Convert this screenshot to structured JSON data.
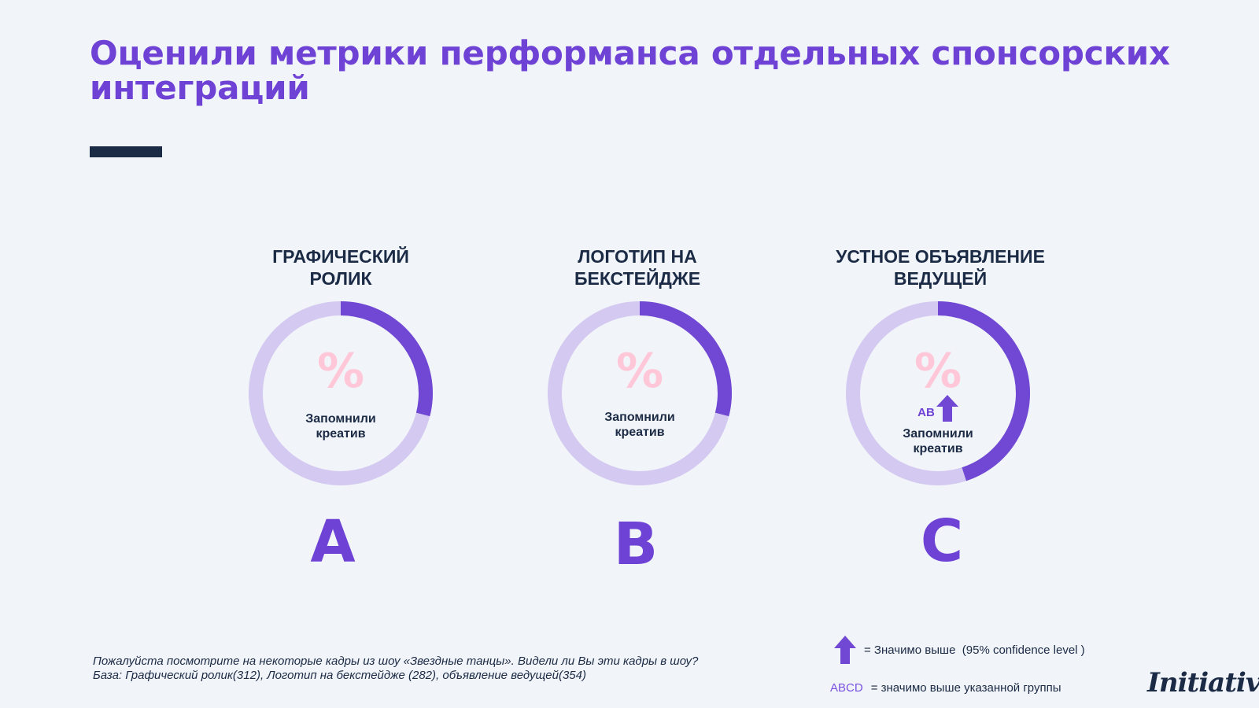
{
  "title": "Оценили метрики перформанса отдельных спонсорских интеграций",
  "colors": {
    "title": "#6f42d6",
    "dark": "#1b2a45",
    "ring_fill": "#7048d4",
    "ring_track": "#d4c9f1",
    "percent": "#ffc7d8",
    "accent": "#7a52e0"
  },
  "chart_data": {
    "type": "pie",
    "series": [
      {
        "heading": "ГРАФИЧЕСКИЙ\nРОЛИК",
        "value_label": "%",
        "caption": "Запомнили\nкреатив",
        "fraction": 0.29,
        "group": "A",
        "significant_over": ""
      },
      {
        "heading": "ЛОГОТИП НА\nБЕКСТЕЙДЖЕ",
        "value_label": "%",
        "caption": "Запомнили\nкреатив",
        "fraction": 0.29,
        "group": "B",
        "significant_over": ""
      },
      {
        "heading": "УСТНОЕ ОБЪЯВЛЕНИЕ\nВЕДУЩЕЙ",
        "value_label": "%",
        "caption": "Запомнили\nкреатив",
        "fraction": 0.45,
        "group": "C",
        "significant_over": "AB",
        "arrow_icon": "up-arrow-icon"
      }
    ]
  },
  "footnote": {
    "question": "Пожалуйста посмотрите на некоторые кадры из шоу «Звездные танцы». Видели ли Вы эти кадры в шоу?",
    "base": "База: Графический ролик(312), Логотип на бекстейдже (282), объявление ведущей(354)"
  },
  "legend": {
    "arrow_icon": "up-arrow-icon",
    "arrow_text": "= Значимо выше  (95% confidence level )",
    "abcd_label": "ABCD",
    "abcd_text": "= значимо выше указанной группы"
  },
  "logo": "Initiative"
}
